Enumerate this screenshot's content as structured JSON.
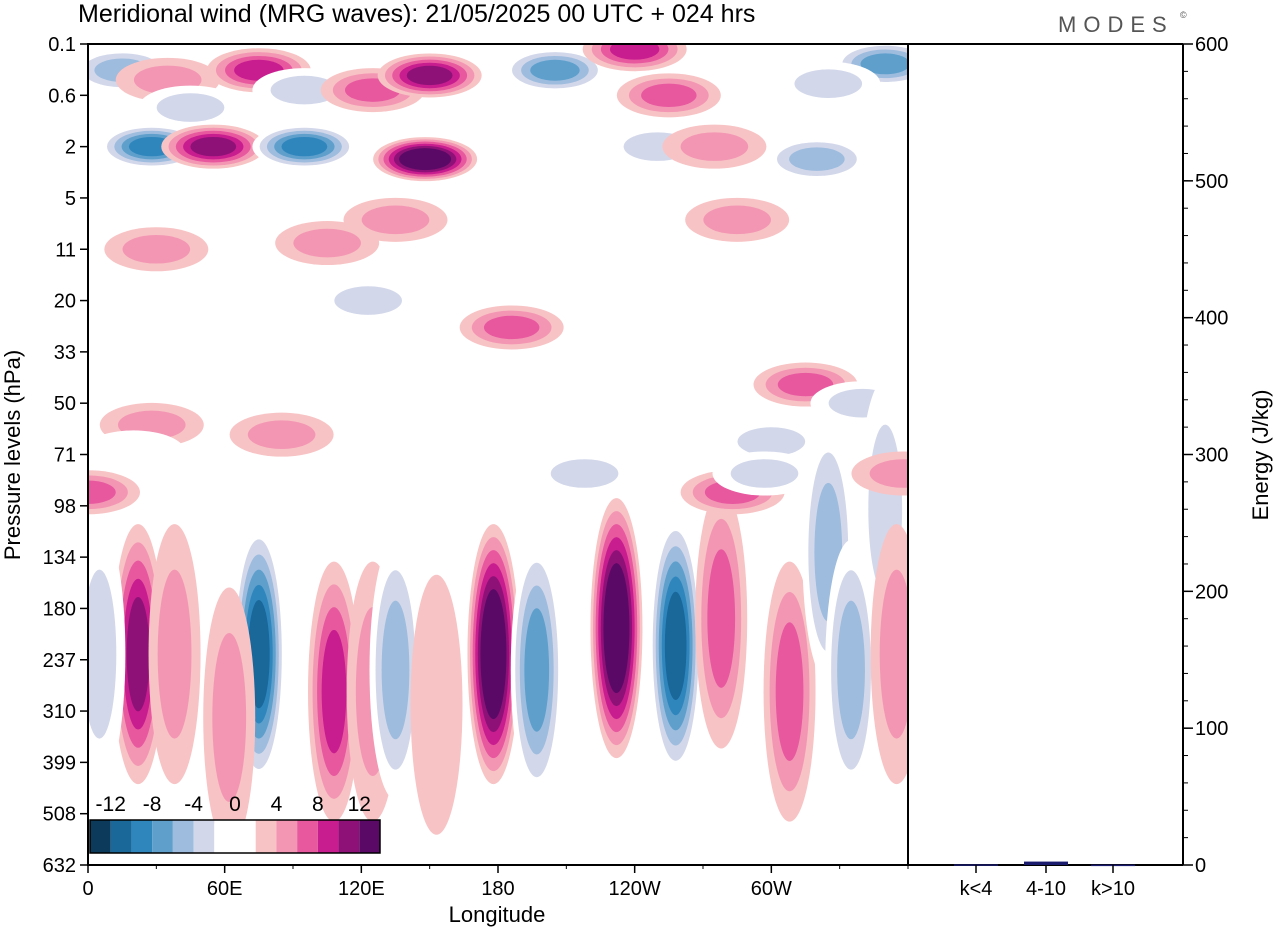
{
  "header": {
    "title": "Meridional wind (MRG waves):  21/05/2025  00 UTC  + 024 hrs",
    "logo": "MODES",
    "logo_mark": "©"
  },
  "chart_data": [
    {
      "type": "heatmap",
      "title": "Meridional wind (MRG waves):  21/05/2025  00 UTC  + 024 hrs",
      "xlabel": "Longitude",
      "ylabel": "Pressure levels (hPa)",
      "x_ticks": [
        "0",
        "60E",
        "120E",
        "180",
        "120W",
        "60W"
      ],
      "x_range": [
        0,
        360
      ],
      "y_ticks": [
        "0.1",
        "0.6",
        "2",
        "5",
        "11",
        "20",
        "33",
        "50",
        "71",
        "98",
        "134",
        "180",
        "237",
        "310",
        "399",
        "508",
        "632"
      ],
      "y_scale": "log-pressure, top 0.1 hPa to bottom 632 hPa",
      "colorbar": {
        "tick_labels": [
          "-12",
          "-8",
          "-4",
          "0",
          "4",
          "8",
          "12"
        ],
        "levels": [
          -14,
          -12,
          -10,
          -8,
          -6,
          -4,
          -2,
          2,
          4,
          6,
          8,
          10,
          12,
          14
        ],
        "colors": [
          "#0b3a5a",
          "#1a679a",
          "#2f86bd",
          "#5e9fcc",
          "#9dbcde",
          "#d2d7ea",
          "#ffffff",
          "#ffffff",
          "#f8c3c4",
          "#f396b4",
          "#e8589f",
          "#c81d8f",
          "#8e1178",
          "#5a0a66"
        ]
      },
      "blobs": [
        {
          "lon": 15,
          "p": 0.25,
          "value": -6
        },
        {
          "lon": 28,
          "p": 2.0,
          "value": -9
        },
        {
          "lon": 35,
          "p": 0.35,
          "value": 4
        },
        {
          "lon": 45,
          "p": 0.8,
          "value": -4
        },
        {
          "lon": 55,
          "p": 2.0,
          "value": 10
        },
        {
          "lon": 45,
          "p": 7,
          "value": -2
        },
        {
          "lon": 30,
          "p": 11,
          "value": 3
        },
        {
          "lon": 75,
          "p": 0.25,
          "value": 8
        },
        {
          "lon": 95,
          "p": 2.0,
          "value": -10
        },
        {
          "lon": 95,
          "p": 0.5,
          "value": -4
        },
        {
          "lon": 125,
          "p": 0.5,
          "value": 6
        },
        {
          "lon": 150,
          "p": 0.3,
          "value": 10
        },
        {
          "lon": 148,
          "p": 2.5,
          "value": 13
        },
        {
          "lon": 135,
          "p": 7,
          "value": 4
        },
        {
          "lon": 105,
          "p": 10,
          "value": 3
        },
        {
          "lon": 205,
          "p": 0.25,
          "value": -7
        },
        {
          "lon": 240,
          "p": 0.12,
          "value": 8
        },
        {
          "lon": 255,
          "p": 0.6,
          "value": 6
        },
        {
          "lon": 250,
          "p": 2.0,
          "value": -4
        },
        {
          "lon": 275,
          "p": 2.0,
          "value": 4
        },
        {
          "lon": 320,
          "p": 2.5,
          "value": -5
        },
        {
          "lon": 350,
          "p": 0.2,
          "value": -8
        },
        {
          "lon": 325,
          "p": 0.4,
          "value": -3
        },
        {
          "lon": 285,
          "p": 7,
          "value": 4
        },
        {
          "lon": 320,
          "p": 12,
          "value": -2
        },
        {
          "lon": 123,
          "p": 20,
          "value": -3
        },
        {
          "lon": 186,
          "p": 26,
          "value": 5
        },
        {
          "lon": 315,
          "p": 43,
          "value": 5
        },
        {
          "lon": 300,
          "p": 65,
          "value": -3
        },
        {
          "lon": 28,
          "p": 58,
          "value": 3
        },
        {
          "lon": 85,
          "p": 62,
          "value": 3
        },
        {
          "lon": 340,
          "p": 50,
          "value": -3
        },
        {
          "lon": 0,
          "p": 90,
          "value": 5
        },
        {
          "lon": 20,
          "p": 70,
          "value": -2
        },
        {
          "lon": 22,
          "p": 230,
          "value": 9
        },
        {
          "lon": 5,
          "p": 230,
          "value": -4
        },
        {
          "lon": 38,
          "p": 230,
          "value": 3
        },
        {
          "lon": 75,
          "p": 230,
          "value": -11
        },
        {
          "lon": 62,
          "p": 320,
          "value": 3
        },
        {
          "lon": 108,
          "p": 280,
          "value": 7
        },
        {
          "lon": 125,
          "p": 280,
          "value": 3
        },
        {
          "lon": 135,
          "p": 250,
          "value": -5
        },
        {
          "lon": 153,
          "p": 300,
          "value": 2
        },
        {
          "lon": 178,
          "p": 230,
          "value": 14
        },
        {
          "lon": 197,
          "p": 250,
          "value": -7
        },
        {
          "lon": 218,
          "p": 80,
          "value": -4
        },
        {
          "lon": 232,
          "p": 200,
          "value": 13
        },
        {
          "lon": 258,
          "p": 220,
          "value": -12
        },
        {
          "lon": 278,
          "p": 190,
          "value": 6
        },
        {
          "lon": 283,
          "p": 90,
          "value": 5
        },
        {
          "lon": 297,
          "p": 80,
          "value": -3
        },
        {
          "lon": 308,
          "p": 280,
          "value": 5
        },
        {
          "lon": 325,
          "p": 130,
          "value": -5
        },
        {
          "lon": 335,
          "p": 250,
          "value": -6
        },
        {
          "lon": 350,
          "p": 100,
          "value": -3
        },
        {
          "lon": 355,
          "p": 230,
          "value": 3
        },
        {
          "lon": 358,
          "p": 80,
          "value": 4
        }
      ]
    },
    {
      "type": "bar",
      "categories": [
        "k<4",
        "4-10",
        "k>10"
      ],
      "values": [
        0.5,
        2.5,
        0.3
      ],
      "ylabel": "Energy (J/kg)",
      "ylim": [
        0,
        600
      ],
      "y_ticks": [
        "0",
        "100",
        "200",
        "300",
        "400",
        "500",
        "600"
      ],
      "colors": [
        "#1b1b6e",
        "#1b1b6e",
        "#1b1b6e"
      ]
    }
  ]
}
